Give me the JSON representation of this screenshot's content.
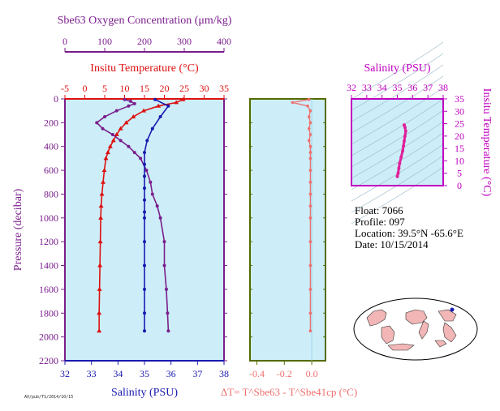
{
  "colors": {
    "background": "#cdeef8",
    "oxygen": "#7a1e8c",
    "temperature": "#dd1010",
    "salinity": "#1a1ab0",
    "pressure_axis": "#7a1e8c",
    "delta_t": "#ef6f6f",
    "delta_axis": "#556b00",
    "ts_curve": "#e0209a",
    "ts_axis": "#c000c0",
    "land": "#f2b6b6",
    "sea": "#ffffff"
  },
  "float_info": {
    "float_label": "Float:",
    "float_value": "7066",
    "profile_label": "Profile:",
    "profile_value": "097",
    "location_label": "Location:",
    "location_value": "39.5°N  -65.6°E",
    "date_label": "Date:",
    "date_value": "10/15/2014"
  },
  "footnote": "AV/pub/TS/2014/10/15",
  "chart_data": [
    {
      "type": "line",
      "title": "",
      "ylabel": "Pressure (decibar)",
      "ylim": [
        2200,
        0
      ],
      "yticks": [
        0,
        200,
        400,
        600,
        800,
        1000,
        1200,
        1400,
        1600,
        1800,
        2000,
        2200
      ],
      "axes": {
        "oxygen": {
          "label": "Sbe63 Oxygen Concentration (μm/kg)",
          "lim": [
            0,
            400
          ],
          "ticks": [
            0,
            100,
            200,
            300,
            400
          ],
          "position": "top"
        },
        "temperature": {
          "label": "Insitu Temperature (°C)",
          "lim": [
            -5,
            35
          ],
          "ticks": [
            -5,
            0,
            5,
            10,
            15,
            20,
            25,
            30,
            35
          ],
          "position": "top"
        },
        "salinity": {
          "label": "Salinity (PSU)",
          "lim": [
            32,
            38
          ],
          "ticks": [
            32,
            33,
            34,
            35,
            36,
            37,
            38
          ],
          "position": "bottom"
        }
      },
      "series": [
        {
          "name": "Insitu Temperature (°C)",
          "x": [
            24.7,
            23.0,
            18.5,
            14.8,
            12.2,
            10.4,
            9.0,
            8.0,
            7.2,
            6.4,
            5.8,
            5.3,
            4.9,
            4.6,
            4.3,
            4.1,
            4.0,
            3.9,
            3.8,
            3.7,
            3.6,
            3.6
          ],
          "y": [
            5,
            30,
            60,
            100,
            150,
            200,
            250,
            300,
            350,
            400,
            450,
            500,
            600,
            700,
            800,
            900,
            1000,
            1200,
            1400,
            1600,
            1800,
            1950
          ]
        },
        {
          "name": "Sbe63 Oxygen Concentration (μm/kg)",
          "x": [
            150,
            165,
            175,
            160,
            130,
            100,
            80,
            95,
            120,
            140,
            160,
            175,
            190,
            205,
            215,
            220,
            232,
            240,
            250,
            250,
            255,
            258,
            260
          ],
          "y": [
            5,
            20,
            40,
            60,
            100,
            150,
            200,
            250,
            300,
            350,
            400,
            450,
            500,
            600,
            700,
            800,
            900,
            1000,
            1200,
            1400,
            1600,
            1800,
            1950
          ]
        },
        {
          "name": "Salinity (PSU)",
          "x": [
            35.4,
            35.9,
            35.6,
            35.3,
            35.1,
            35.0,
            35.0,
            35.0,
            35.0,
            35.0,
            35.0,
            35.0,
            35.0,
            35.0,
            35.0,
            35.0,
            35.0
          ],
          "y": [
            5,
            60,
            150,
            250,
            350,
            450,
            550,
            650,
            750,
            850,
            950,
            1000,
            1200,
            1400,
            1600,
            1800,
            1950
          ]
        }
      ]
    },
    {
      "type": "line",
      "title": "",
      "xlabel": "ΔT= T^Sbe63 - T^Sbe41cp (°C)",
      "xlim": [
        -0.45,
        0.1
      ],
      "xticks": [
        -0.4,
        -0.2,
        0.0
      ],
      "ylim": [
        2200,
        0
      ],
      "series": [
        {
          "name": "ΔT",
          "x": [
            -0.02,
            -0.14,
            -0.03,
            -0.01,
            -0.02,
            -0.01,
            -0.02,
            -0.01,
            -0.02,
            -0.01,
            -0.01,
            -0.01,
            -0.01,
            -0.01,
            -0.01,
            -0.01,
            -0.01,
            -0.01,
            -0.01,
            -0.01,
            -0.01,
            -0.01
          ],
          "y": [
            5,
            30,
            60,
            100,
            150,
            200,
            250,
            300,
            350,
            400,
            450,
            500,
            600,
            700,
            800,
            900,
            1000,
            1200,
            1400,
            1600,
            1800,
            1950
          ]
        }
      ]
    },
    {
      "type": "line",
      "title": "",
      "xlabel": "Salinity (PSU)",
      "ylabel": "Insitu Temperature (°C)",
      "xlim": [
        32,
        38
      ],
      "ylim": [
        0,
        35
      ],
      "xticks": [
        32,
        33,
        34,
        35,
        36,
        37,
        38
      ],
      "yticks": [
        0,
        5,
        10,
        15,
        20,
        25,
        30,
        35
      ],
      "series": [
        {
          "name": "T-S",
          "x": [
            35.0,
            35.05,
            35.1,
            35.15,
            35.25,
            35.35,
            35.4,
            35.45,
            35.5,
            35.55,
            35.5,
            35.45
          ],
          "y": [
            3.7,
            5.0,
            7.0,
            9.0,
            11.5,
            14.0,
            16.0,
            18.0,
            20.0,
            22.0,
            23.5,
            24.5
          ]
        }
      ]
    }
  ]
}
